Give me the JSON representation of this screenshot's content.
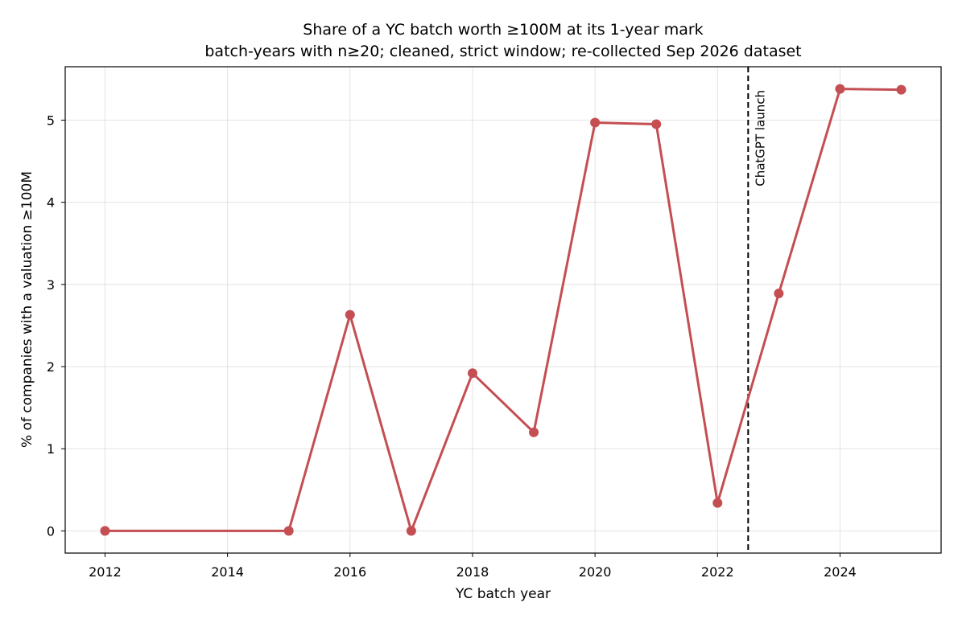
{
  "chart_data": {
    "type": "line",
    "title": "Share of a YC batch worth ≥100M at its 1-year mark",
    "subtitle": "batch-years with n≥20; cleaned, strict window; re-collected Sep 2026 dataset",
    "xlabel": "YC batch year",
    "ylabel": "% of companies with a valuation ≥100M",
    "xlim": [
      2011.35,
      2025.65
    ],
    "ylim": [
      -0.27,
      5.65
    ],
    "xticks": [
      2012,
      2014,
      2016,
      2018,
      2020,
      2022,
      2024
    ],
    "xtick_labels": [
      "2012",
      "2014",
      "2016",
      "2018",
      "2020",
      "2022",
      "2024"
    ],
    "yticks": [
      0,
      1,
      2,
      3,
      4,
      5
    ],
    "ytick_labels": [
      "0",
      "1",
      "2",
      "3",
      "4",
      "5"
    ],
    "grid": true,
    "series": [
      {
        "color": "#c44e52",
        "x": [
          2012,
          2015,
          2016,
          2017,
          2018,
          2019,
          2020,
          2021,
          2022,
          2023,
          2024,
          2025
        ],
        "y": [
          0.0,
          0.0,
          2.63,
          0.0,
          1.92,
          1.2,
          4.97,
          4.95,
          0.34,
          2.89,
          5.38,
          5.37
        ]
      }
    ],
    "annotations": [
      {
        "type": "vline",
        "x": 2022.5,
        "style": "dashed",
        "color": "#000000",
        "text": "ChatGPT launch"
      }
    ]
  }
}
